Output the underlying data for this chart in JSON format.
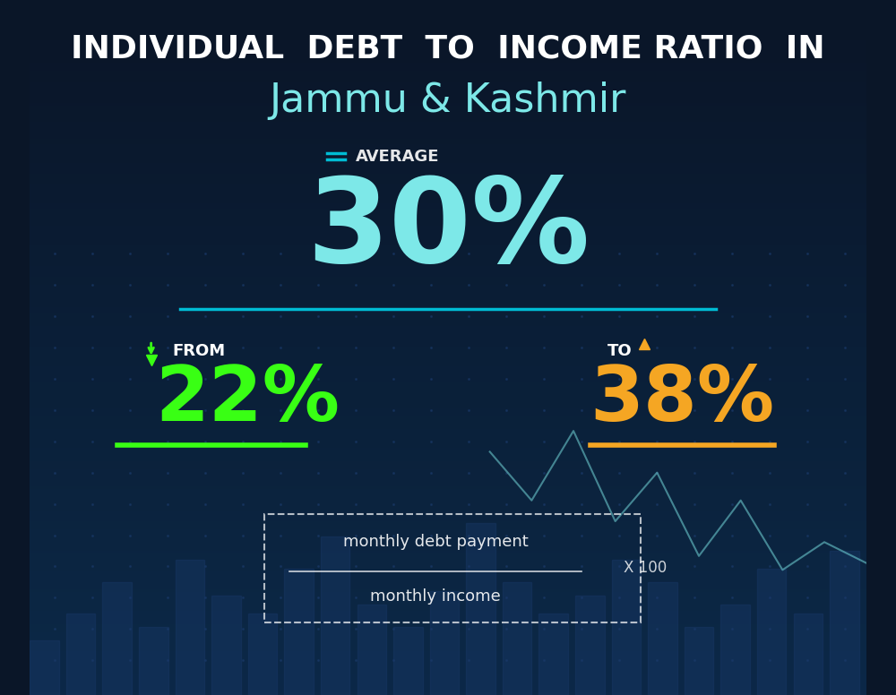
{
  "bg_color_top": "#0a1628",
  "bg_color_bottom": "#0d2a4a",
  "title_line1": "INDIVIDUAL  DEBT  TO  INCOME RATIO  IN",
  "title_line2": "Jammu & Kashmir",
  "avg_label": "AVERAGE",
  "avg_value": "30%",
  "from_label": "FROM",
  "from_value": "22%",
  "to_label": "TO",
  "to_value": "38%",
  "formula_numerator": "monthly debt payment",
  "formula_denominator": "monthly income",
  "formula_multiplier": "X 100",
  "avg_color": "#7de8e8",
  "from_color": "#39ff14",
  "to_color": "#f5a623",
  "title1_color": "#ffffff",
  "title2_color": "#7de8e8",
  "white_color": "#ffffff",
  "accent_cyan": "#00bcd4",
  "arrow_down_color": "#39ff14",
  "arrow_up_color": "#f5a623",
  "equal_icon_color": "#00bcd4"
}
